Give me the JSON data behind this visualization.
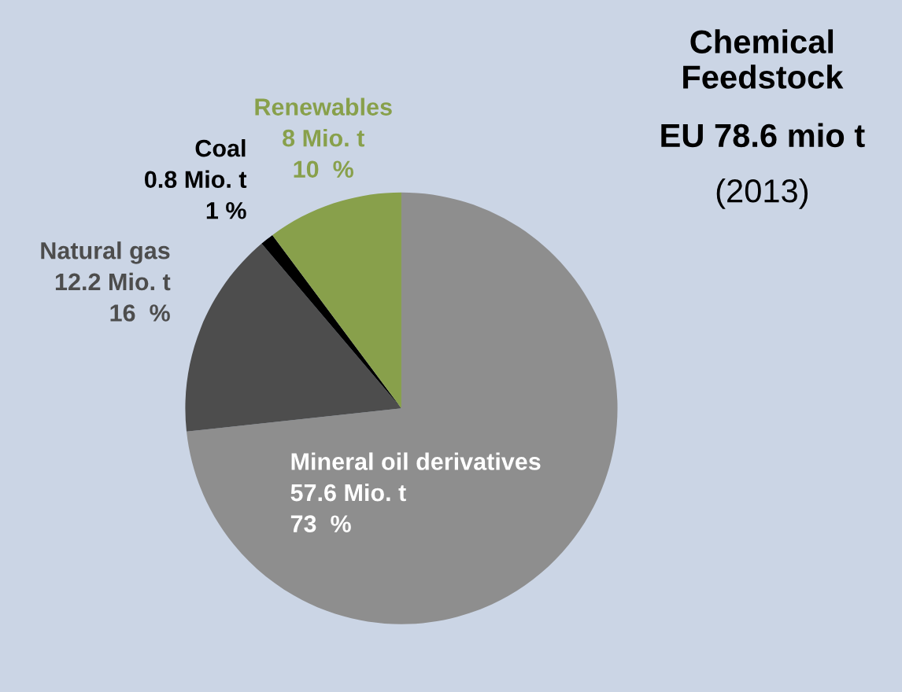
{
  "chart_data": {
    "type": "pie",
    "title": "Chemical Feedstock",
    "subtitle": "EU 78.6 mio t",
    "annotations": [
      "(2013)"
    ],
    "categories": [
      "Mineral oil derivatives",
      "Natural gas",
      "Coal",
      "Renewables"
    ],
    "values": [
      57.6,
      12.2,
      0.8,
      8
    ],
    "value_labels": [
      "57.6 Mio. t\n73  %",
      "12.2 Mio. t\n16  %",
      "0.8 Mio. t\n1 %",
      "8 Mio. t\n10  %"
    ],
    "colors": [
      "#8e8e8e",
      "#4d4d4d",
      "#000000",
      "#88a04b"
    ]
  }
}
